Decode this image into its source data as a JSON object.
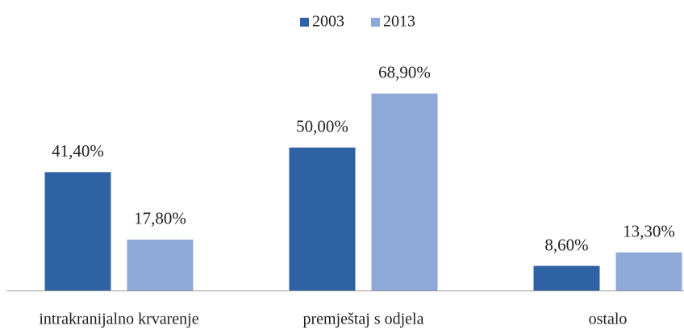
{
  "chart_data": {
    "type": "bar",
    "categories": [
      "intrakranijalno krvarenje",
      "premještaj s odjela",
      "ostalo"
    ],
    "series": [
      {
        "name": "2003",
        "color": "#2f62a5",
        "values": [
          41.4,
          50.0,
          8.6
        ],
        "value_labels": [
          "41,40%",
          "50,00%",
          "8,60%"
        ]
      },
      {
        "name": "2013",
        "color": "#8ea9d8",
        "values": [
          17.8,
          68.9,
          13.3
        ],
        "value_labels": [
          "17,80%",
          "68,90%",
          "13,30%"
        ]
      }
    ],
    "ylim": [
      0,
      70
    ],
    "legend": "top"
  }
}
